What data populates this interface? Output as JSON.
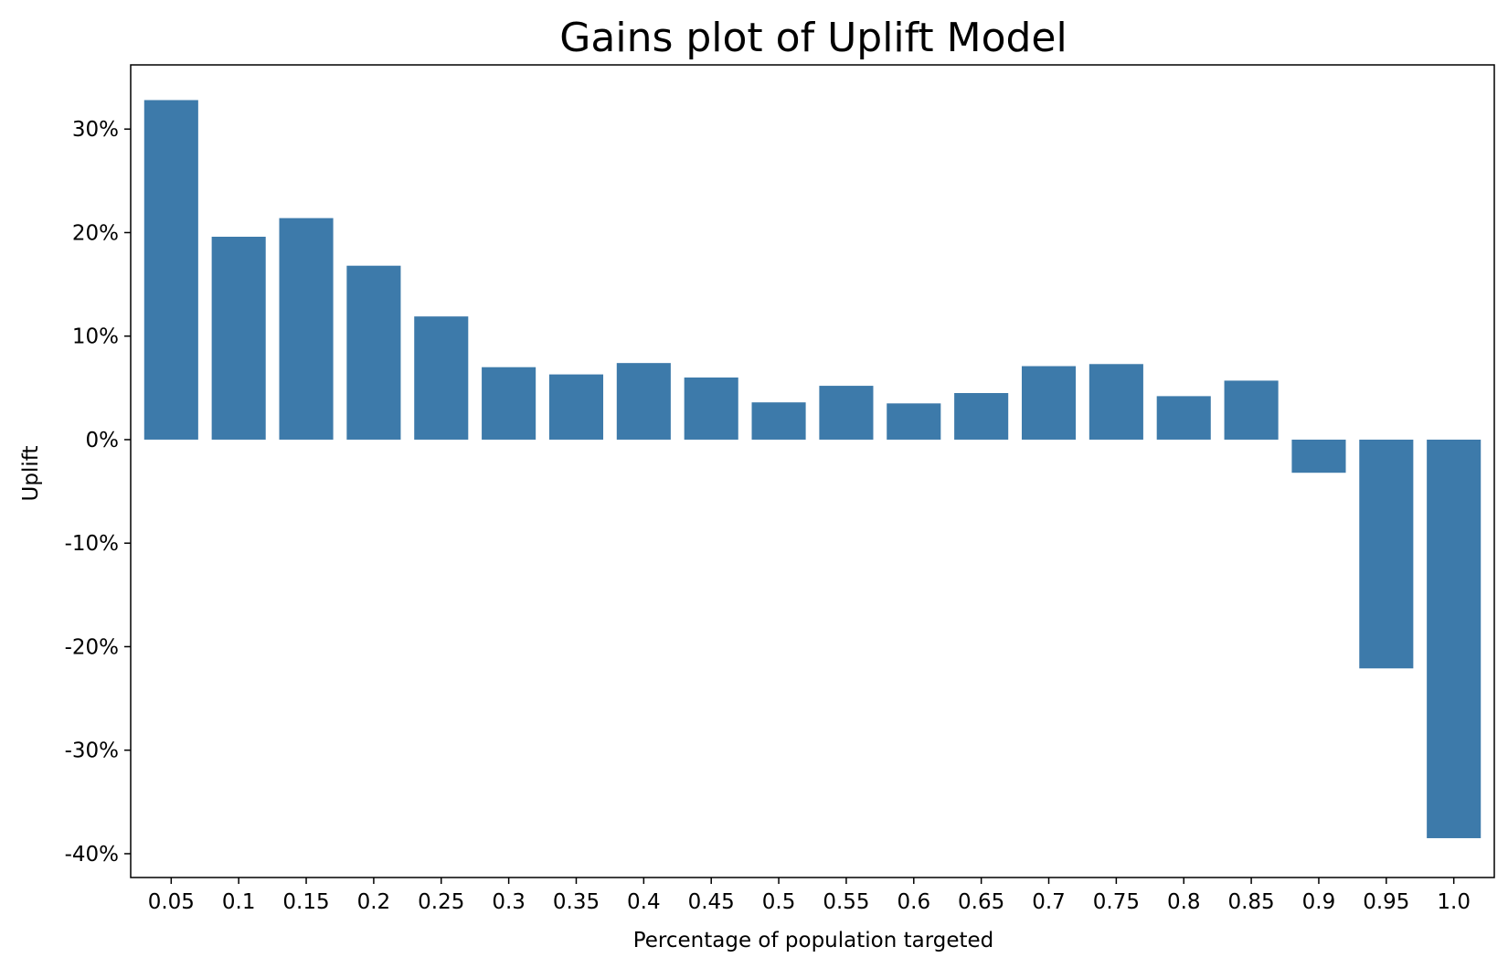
{
  "chart_data": {
    "type": "bar",
    "title": "Gains plot of Uplift Model",
    "xlabel": "Percentage of population targeted",
    "ylabel": "Uplift",
    "categories": [
      "0.05",
      "0.1",
      "0.15",
      "0.2",
      "0.25",
      "0.3",
      "0.35",
      "0.4",
      "0.45",
      "0.5",
      "0.55",
      "0.6",
      "0.65",
      "0.7",
      "0.75",
      "0.8",
      "0.85",
      "0.9",
      "0.95",
      "1.0"
    ],
    "values": [
      32.8,
      19.6,
      21.4,
      16.8,
      11.9,
      7.0,
      6.3,
      7.4,
      6.0,
      3.6,
      5.2,
      3.5,
      4.5,
      7.1,
      7.3,
      4.2,
      5.7,
      -3.2,
      -22.1,
      -38.5
    ],
    "value_unit": "%",
    "yticks": [
      30,
      20,
      10,
      0,
      -10,
      -20,
      -30,
      -40
    ],
    "ytick_labels": [
      "30%",
      "20%",
      "10%",
      "0%",
      "-10%",
      "-20%",
      "-30%",
      "-40%"
    ],
    "ylim": [
      -42.3,
      36.2
    ],
    "grid": false,
    "legend": "none",
    "bar_color": "#3d7aaa"
  }
}
